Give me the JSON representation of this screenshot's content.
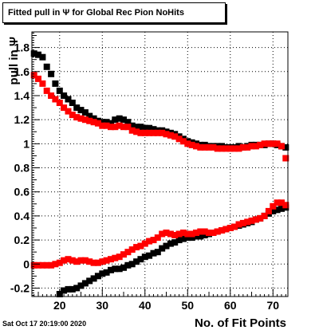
{
  "chart_data": {
    "type": "scatter",
    "title": "Fitted pull in  Ψ  for Global Rec Pion NoHits",
    "xlabel": "No. of Fit Points",
    "ylabel": "pull in Ψ",
    "xlim": [
      13.5,
      73.5
    ],
    "ylim": [
      -0.27,
      1.93
    ],
    "xticks": [
      "20",
      "30",
      "40",
      "50",
      "60",
      "70"
    ],
    "yticks": [
      "-0.2",
      "0",
      "0.2",
      "0.4",
      "0.6",
      "0.8",
      "1",
      "1.2",
      "1.4",
      "1.6",
      "1.8"
    ],
    "grid": true,
    "timestamp": "Sat Oct 17 20:19:00 2020",
    "series": [
      {
        "color": "#000000",
        "x": [
          14,
          15,
          16,
          17,
          18,
          19,
          20,
          21,
          22,
          23,
          24,
          25,
          26,
          27,
          28,
          29,
          30,
          31,
          32,
          33,
          34,
          35,
          36,
          37,
          38,
          39,
          40,
          41,
          42,
          43,
          44,
          45,
          46,
          47,
          48,
          49,
          50,
          51,
          52,
          53,
          54,
          55,
          56,
          57,
          58,
          59,
          60,
          61,
          62,
          63,
          64,
          65,
          66,
          67,
          68,
          69,
          70,
          71,
          72,
          73
        ],
        "y": [
          1.75,
          1.74,
          1.72,
          1.64,
          1.58,
          1.5,
          1.44,
          1.4,
          1.37,
          1.34,
          1.3,
          1.28,
          1.26,
          1.23,
          1.21,
          1.19,
          1.18,
          1.18,
          1.17,
          1.2,
          1.21,
          1.2,
          1.18,
          1.15,
          1.14,
          1.14,
          1.13,
          1.13,
          1.12,
          1.11,
          1.11,
          1.1,
          1.09,
          1.08,
          1.06,
          1.04,
          1.02,
          1.01,
          1.0,
          0.99,
          0.99,
          0.98,
          0.98,
          0.98,
          0.98,
          0.97,
          0.97,
          0.97,
          0.98,
          0.97,
          0.98,
          0.99,
          0.99,
          0.99,
          0.99,
          1.0,
          1.0,
          0.99,
          0.98,
          0.97
        ]
      },
      {
        "color": "#ff0000",
        "x": [
          14,
          15,
          16,
          17,
          18,
          19,
          20,
          21,
          22,
          23,
          24,
          25,
          26,
          27,
          28,
          29,
          30,
          31,
          32,
          33,
          34,
          35,
          36,
          37,
          38,
          39,
          40,
          41,
          42,
          43,
          44,
          45,
          46,
          47,
          48,
          49,
          50,
          51,
          52,
          53,
          54,
          55,
          56,
          57,
          58,
          59,
          60,
          61,
          62,
          63,
          64,
          65,
          66,
          67,
          68,
          69,
          70,
          71,
          72,
          73
        ],
        "y": [
          1.57,
          1.54,
          1.5,
          1.44,
          1.4,
          1.37,
          1.34,
          1.3,
          1.27,
          1.24,
          1.22,
          1.21,
          1.2,
          1.19,
          1.18,
          1.17,
          1.15,
          1.15,
          1.14,
          1.14,
          1.15,
          1.14,
          1.14,
          1.11,
          1.1,
          1.09,
          1.09,
          1.09,
          1.09,
          1.09,
          1.09,
          1.08,
          1.07,
          1.06,
          1.04,
          1.02,
          1.0,
          0.99,
          0.98,
          0.97,
          0.97,
          0.97,
          0.97,
          0.96,
          0.96,
          0.96,
          0.96,
          0.96,
          0.96,
          0.97,
          0.97,
          0.98,
          0.98,
          0.99,
          1.0,
          1.0,
          1.0,
          1.0,
          0.98,
          0.88
        ]
      },
      {
        "color": "#000000",
        "x": [
          20,
          21,
          22,
          23,
          24,
          25,
          26,
          27,
          28,
          29,
          30,
          31,
          32,
          33,
          34,
          35,
          36,
          37,
          38,
          39,
          40,
          41,
          42,
          43,
          44,
          45,
          46,
          47,
          48,
          49,
          50,
          51,
          52,
          53,
          54,
          55,
          56,
          57,
          58,
          59,
          60,
          61,
          62,
          63,
          64,
          65,
          66,
          67,
          68,
          69,
          70,
          71,
          72,
          73
        ],
        "y": [
          -0.25,
          -0.22,
          -0.21,
          -0.21,
          -0.2,
          -0.18,
          -0.16,
          -0.14,
          -0.12,
          -0.1,
          -0.08,
          -0.07,
          -0.05,
          -0.04,
          -0.04,
          -0.03,
          -0.01,
          0.0,
          0.02,
          0.04,
          0.06,
          0.07,
          0.09,
          0.1,
          0.13,
          0.15,
          0.17,
          0.18,
          0.2,
          0.21,
          0.22,
          0.22,
          0.23,
          0.23,
          0.24,
          0.25,
          0.26,
          0.27,
          0.28,
          0.29,
          0.3,
          0.31,
          0.32,
          0.33,
          0.34,
          0.35,
          0.37,
          0.38,
          0.4,
          0.42,
          0.44,
          0.45,
          0.46,
          0.47
        ]
      },
      {
        "color": "#ff0000",
        "x": [
          14,
          15,
          16,
          17,
          18,
          19,
          20,
          21,
          22,
          23,
          24,
          25,
          26,
          27,
          28,
          29,
          30,
          31,
          32,
          33,
          34,
          35,
          36,
          37,
          38,
          39,
          40,
          41,
          42,
          43,
          44,
          45,
          46,
          47,
          48,
          49,
          50,
          51,
          52,
          53,
          54,
          55,
          56,
          57,
          58,
          59,
          60,
          61,
          62,
          63,
          64,
          65,
          66,
          67,
          68,
          69,
          70,
          71,
          72,
          73
        ],
        "y": [
          -0.01,
          -0.01,
          -0.01,
          -0.01,
          -0.01,
          0.0,
          0.01,
          0.03,
          0.04,
          0.03,
          0.02,
          0.03,
          0.03,
          0.02,
          0.01,
          0.01,
          0.02,
          0.03,
          0.04,
          0.05,
          0.06,
          0.08,
          0.1,
          0.12,
          0.14,
          0.15,
          0.17,
          0.19,
          0.2,
          0.22,
          0.25,
          0.26,
          0.25,
          0.24,
          0.25,
          0.26,
          0.25,
          0.25,
          0.26,
          0.27,
          0.27,
          0.26,
          0.26,
          0.27,
          0.28,
          0.29,
          0.3,
          0.31,
          0.33,
          0.34,
          0.35,
          0.36,
          0.37,
          0.38,
          0.4,
          0.44,
          0.48,
          0.51,
          0.51,
          0.49
        ]
      }
    ]
  }
}
